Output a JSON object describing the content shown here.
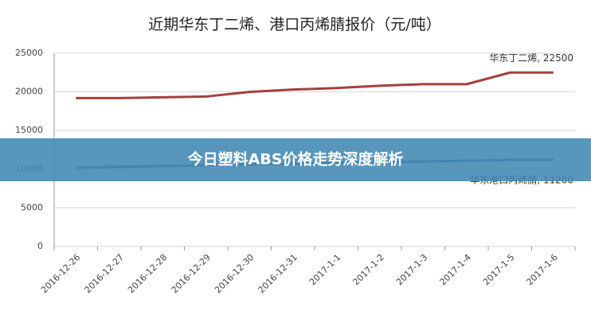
{
  "chart_data": {
    "type": "line",
    "title": "近期华东丁二烯、港口丙烯腈报价（元/吨）",
    "categories": [
      "2016-12-26",
      "2016-12-27",
      "2016-12-28",
      "2016-12-29",
      "2016-12-30",
      "2016-12-31",
      "2017-1-1",
      "2017-1-2",
      "2017-1-3",
      "2017-1-4",
      "2017-1-5",
      "2017-1-6"
    ],
    "series": [
      {
        "name": "华东丁二烯",
        "color": "#a4403c",
        "values": [
          19200,
          19200,
          19300,
          19400,
          20000,
          20300,
          20500,
          20800,
          21000,
          21000,
          22500,
          22500
        ],
        "value_labels": [
          null,
          null,
          null,
          null,
          null,
          null,
          null,
          null,
          null,
          null,
          null,
          "华东丁二烯, 22500"
        ]
      },
      {
        "name": "华东港口丙烯腈",
        "color": "#4f7096",
        "values": [
          10200,
          10300,
          10400,
          10500,
          10600,
          10700,
          10800,
          10900,
          11000,
          11100,
          11200,
          11200
        ],
        "value_labels": [
          null,
          null,
          null,
          null,
          null,
          null,
          null,
          null,
          null,
          null,
          null,
          "华东港口丙烯腈, 11200"
        ]
      }
    ],
    "ylim": [
      0,
      25000
    ],
    "yticks": [
      0,
      5000,
      10000,
      15000,
      20000,
      25000
    ],
    "grid": true
  },
  "banner": {
    "text": "今日塑料ABS价格走势深度解析"
  }
}
